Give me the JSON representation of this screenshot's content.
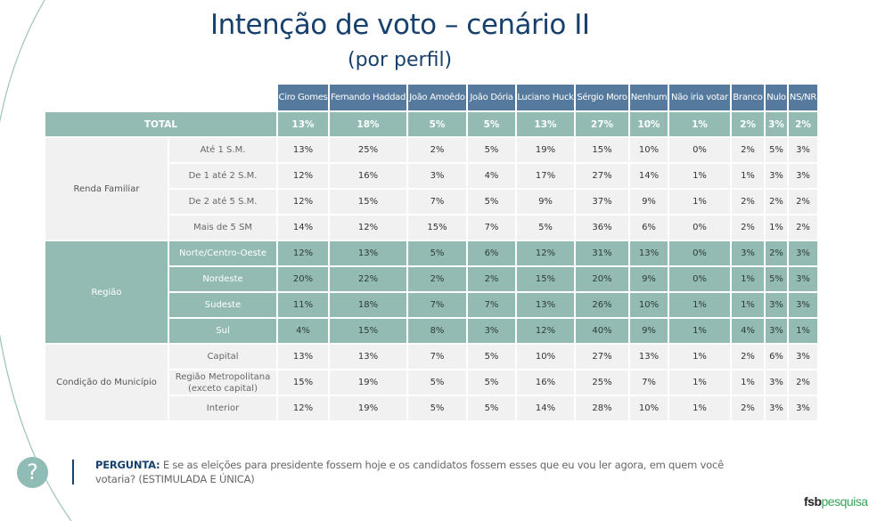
{
  "title": "Intenção de voto – cenário II",
  "subtitle": "(por perfil)",
  "colors": {
    "title": "#17406d",
    "header_bg": "#557a9e",
    "teal_bg": "#93bbb3",
    "light_bg": "#f1f1f1",
    "logo_green": "#3aa35a"
  },
  "table": {
    "columns": [
      "Ciro Gomes",
      "Fernando Haddad",
      "João Amoêdo",
      "João Dória",
      "Luciano Huck",
      "Sérgio Moro",
      "Nenhum",
      "Não iria votar",
      "Branco",
      "Nulo",
      "NS/NR"
    ],
    "total": {
      "label": "TOTAL",
      "values": [
        "13%",
        "18%",
        "5%",
        "5%",
        "13%",
        "27%",
        "10%",
        "1%",
        "2%",
        "3%",
        "2%"
      ]
    },
    "groups": [
      {
        "label": "Renda Familiar",
        "rows": [
          {
            "label": "Até 1 S.M.",
            "values": [
              "13%",
              "25%",
              "2%",
              "5%",
              "19%",
              "15%",
              "10%",
              "0%",
              "2%",
              "5%",
              "3%"
            ]
          },
          {
            "label": "De 1 até 2 S.M.",
            "values": [
              "12%",
              "16%",
              "3%",
              "4%",
              "17%",
              "27%",
              "14%",
              "1%",
              "1%",
              "3%",
              "3%"
            ]
          },
          {
            "label": "De 2 até 5 S.M.",
            "values": [
              "12%",
              "15%",
              "7%",
              "5%",
              "9%",
              "37%",
              "9%",
              "1%",
              "2%",
              "2%",
              "2%"
            ]
          },
          {
            "label": "Mais de 5 SM",
            "values": [
              "14%",
              "12%",
              "15%",
              "7%",
              "5%",
              "36%",
              "6%",
              "0%",
              "2%",
              "1%",
              "2%"
            ]
          }
        ]
      },
      {
        "label": "Região",
        "rows": [
          {
            "label": "Norte/Centro-Oeste",
            "values": [
              "12%",
              "13%",
              "5%",
              "6%",
              "12%",
              "31%",
              "13%",
              "0%",
              "3%",
              "2%",
              "3%"
            ]
          },
          {
            "label": "Nordeste",
            "values": [
              "20%",
              "22%",
              "2%",
              "2%",
              "15%",
              "20%",
              "9%",
              "0%",
              "1%",
              "5%",
              "3%"
            ]
          },
          {
            "label": "Sudeste",
            "values": [
              "11%",
              "18%",
              "7%",
              "7%",
              "13%",
              "26%",
              "10%",
              "1%",
              "1%",
              "3%",
              "3%"
            ]
          },
          {
            "label": "Sul",
            "values": [
              "4%",
              "15%",
              "8%",
              "3%",
              "12%",
              "40%",
              "9%",
              "1%",
              "4%",
              "3%",
              "1%"
            ]
          }
        ]
      },
      {
        "label": "Condição do Município",
        "rows": [
          {
            "label": "Capital",
            "values": [
              "13%",
              "13%",
              "7%",
              "5%",
              "10%",
              "27%",
              "13%",
              "1%",
              "2%",
              "6%",
              "3%"
            ]
          },
          {
            "label": "Região Metropolitana (exceto capital)",
            "label_line1": "Região Metropolitana",
            "label_line2": "(exceto capital)",
            "values": [
              "15%",
              "19%",
              "5%",
              "5%",
              "16%",
              "25%",
              "7%",
              "1%",
              "1%",
              "3%",
              "2%"
            ]
          },
          {
            "label": "Interior",
            "values": [
              "12%",
              "19%",
              "5%",
              "5%",
              "14%",
              "28%",
              "10%",
              "1%",
              "2%",
              "3%",
              "3%"
            ]
          }
        ]
      }
    ]
  },
  "question": {
    "icon": "question-mark-icon",
    "label": "PERGUNTA:",
    "text": " E se as eleições para presidente fossem hoje e os candidatos fossem esses que eu vou ler agora, em quem você votaria? (ESTIMULADA E ÚNICA)"
  },
  "logo": {
    "part1": "fsb",
    "part2": "pesquisa"
  }
}
